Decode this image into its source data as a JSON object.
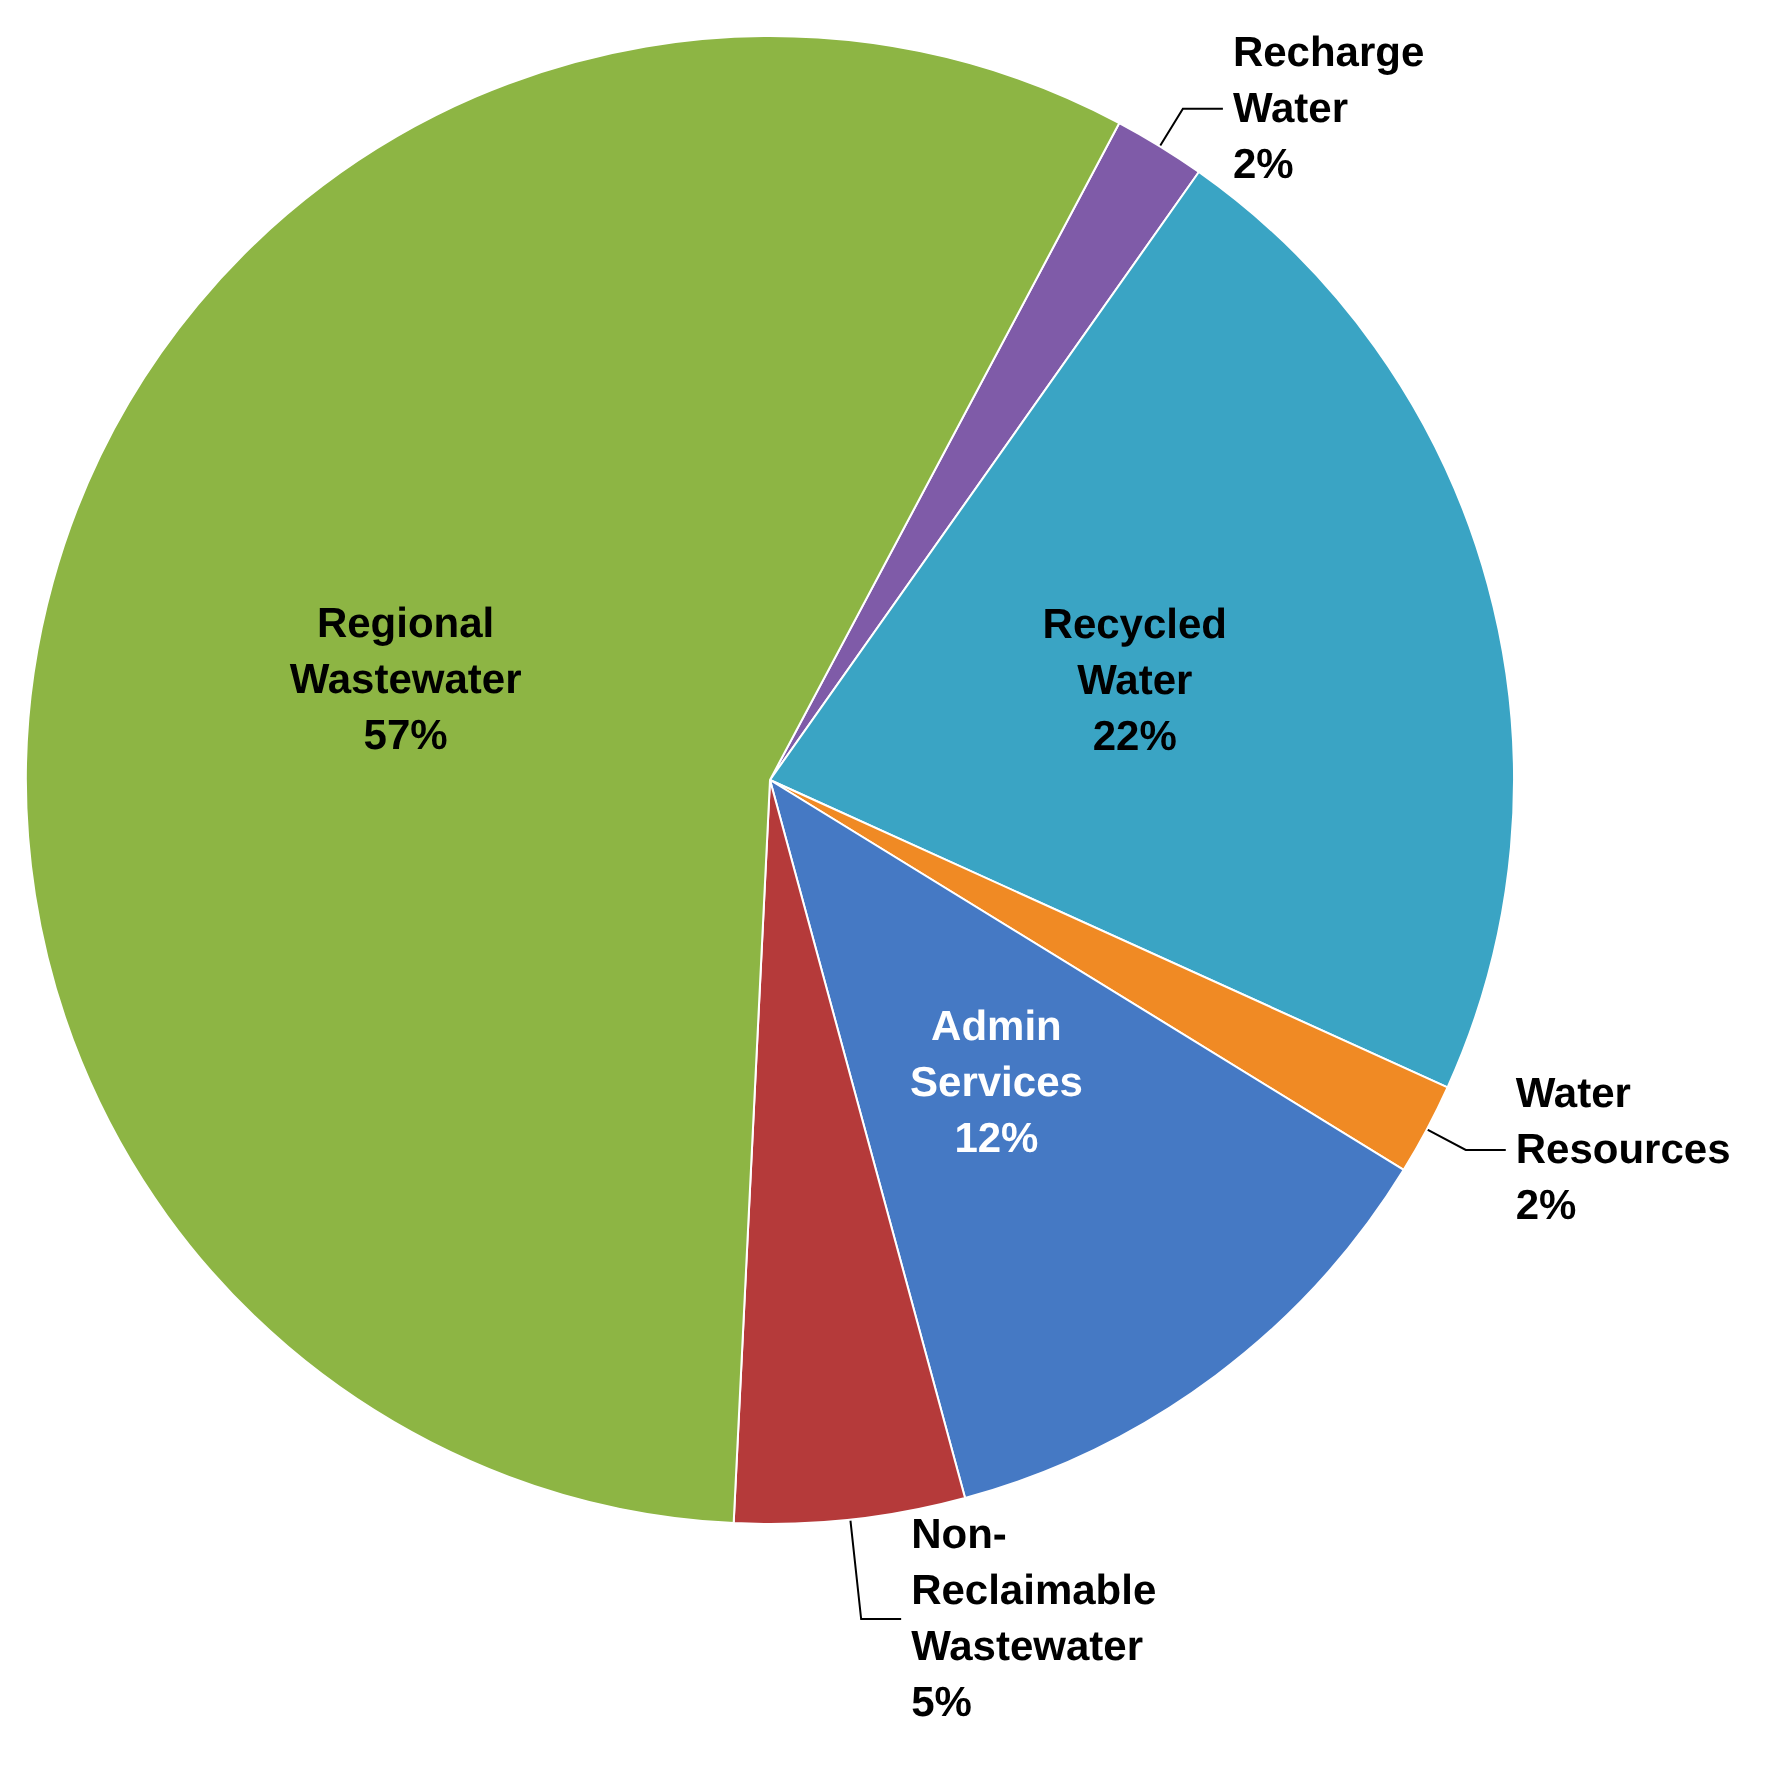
{
  "chart_data": {
    "type": "pie",
    "categories": [
      "Recharge Water",
      "Recycled Water",
      "Water Resources",
      "Admin Services",
      "Non-Reclaimable Wastewater",
      "Regional Wastewater"
    ],
    "values": [
      2,
      22,
      2,
      12,
      5,
      57
    ],
    "colors": [
      "#7f5ba8",
      "#3aa4c4",
      "#f08a24",
      "#4579c4",
      "#b53a3a",
      "#8db544"
    ],
    "value_labels": [
      "2%",
      "22%",
      "2%",
      "12%",
      "5%",
      "57%"
    ],
    "legend": false
  }
}
